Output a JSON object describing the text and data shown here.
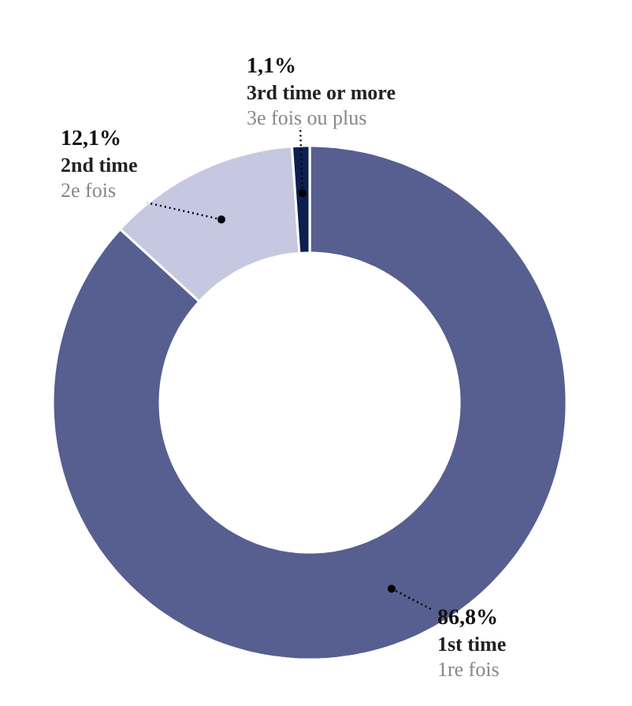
{
  "chart_data": {
    "type": "donut",
    "categories": [
      "1st time",
      "2nd time",
      "3rd time or more"
    ],
    "values": [
      86.8,
      12.1,
      1.1
    ],
    "value_labels": [
      "86,8%",
      "12,1%",
      "1,1%"
    ],
    "colors": [
      "#565f8f",
      "#c5c8e0",
      "#0d1f4f"
    ],
    "annotations": [
      {
        "text": "1re fois",
        "x": "1st time"
      },
      {
        "text": "2e fois",
        "x": "2nd time"
      },
      {
        "text": "3e fois ou plus",
        "x": "3rd time or more"
      }
    ]
  }
}
